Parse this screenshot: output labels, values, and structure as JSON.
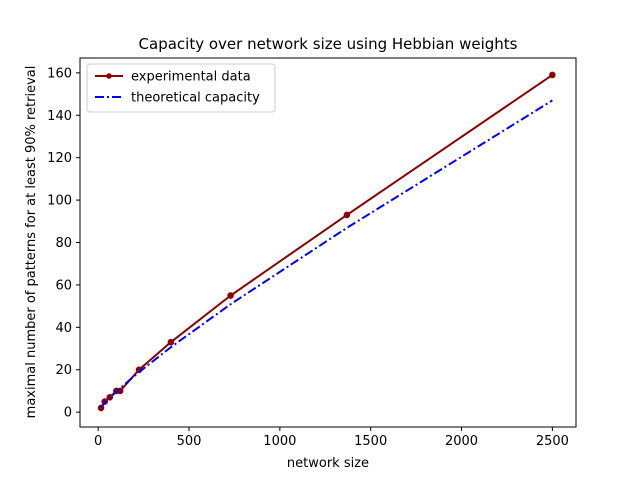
{
  "chart_data": {
    "type": "line",
    "title": "Capacity over network size using Hebbian weights",
    "xlabel": "network size",
    "ylabel": "maximal number of patterns for at least 90% retrieval",
    "xlim": [
      -100,
      2630
    ],
    "ylim": [
      -7,
      167
    ],
    "xticks": [
      0,
      500,
      1000,
      1500,
      2000,
      2500
    ],
    "yticks": [
      0,
      20,
      40,
      60,
      80,
      100,
      120,
      140,
      160
    ],
    "grid": false,
    "legend_position": "upper left",
    "series": [
      {
        "name": "experimental data",
        "color": "#8b0000",
        "style": "solid",
        "marker": "circle",
        "x": [
          16,
          36,
          64,
          100,
          121,
          225,
          400,
          729,
          1369,
          2500
        ],
        "y": [
          2,
          5,
          7,
          10,
          10,
          20,
          33,
          55,
          93,
          159
        ]
      },
      {
        "name": "theoretical capacity",
        "color": "#0000ff",
        "style": "dashdot",
        "marker": "none",
        "x": [
          16,
          36,
          64,
          100,
          121,
          225,
          400,
          729,
          1369,
          2500
        ],
        "y": [
          2.2,
          4.3,
          6.7,
          9.7,
          11.3,
          18.9,
          30.6,
          50.9,
          86.9,
          147.0
        ]
      }
    ]
  }
}
